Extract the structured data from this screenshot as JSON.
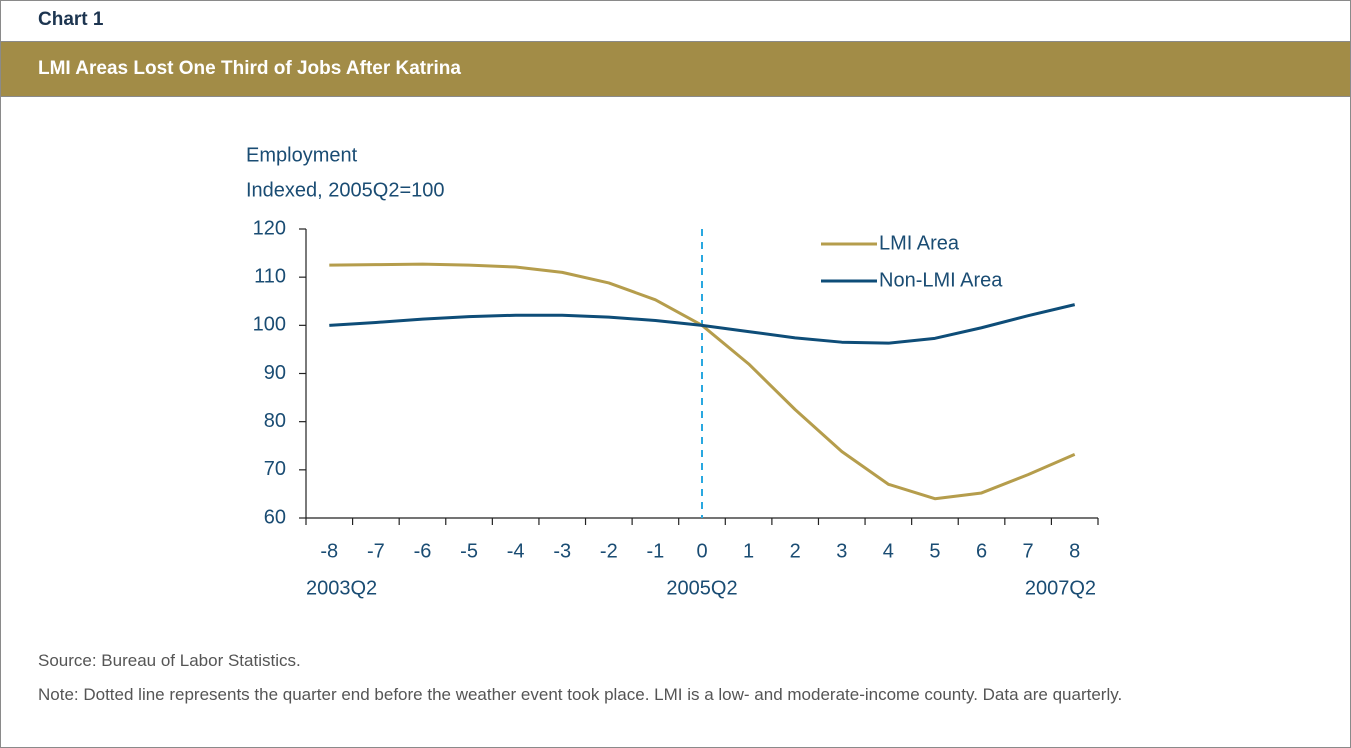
{
  "header": {
    "label": "Chart 1",
    "title": "LMI Areas Lost One Third of Jobs After Katrina"
  },
  "chart_data": {
    "type": "line",
    "ylabel": [
      "Employment",
      "Indexed, 2005Q2=100"
    ],
    "categories": [
      -8,
      -7,
      -6,
      -5,
      -4,
      -3,
      -2,
      -1,
      0,
      1,
      2,
      3,
      4,
      5,
      6,
      7,
      8
    ],
    "period_labels": [
      "2003Q2",
      null,
      null,
      null,
      null,
      null,
      null,
      null,
      "2005Q2",
      null,
      null,
      null,
      null,
      null,
      null,
      null,
      "2007Q2"
    ],
    "series": [
      {
        "name": "LMI Area",
        "color": "#b59d4c",
        "values": [
          112.5,
          112.6,
          112.7,
          112.5,
          112.1,
          111.0,
          108.8,
          105.3,
          100,
          92,
          82.5,
          73.8,
          67,
          64,
          65.2,
          69,
          73.2
        ]
      },
      {
        "name": "Non-LMI Area",
        "color": "#0e4d78",
        "values": [
          100,
          100.6,
          101.3,
          101.8,
          102.1,
          102.1,
          101.7,
          101,
          100,
          98.7,
          97.4,
          96.5,
          96.3,
          97.3,
          99.5,
          102,
          104.3
        ]
      }
    ],
    "ylim": [
      60,
      120
    ],
    "yticks": [
      60,
      70,
      80,
      90,
      100,
      110,
      120
    ],
    "event_line": 0,
    "event_line_color": "#29a8e0",
    "legend": "upper right",
    "grid": false
  },
  "footer": {
    "source": "Source: Bureau of Labor Statistics.",
    "note": "Note: Dotted line represents the quarter end before the weather event took place. LMI is a low- and moderate-income county. Data are quarterly."
  }
}
